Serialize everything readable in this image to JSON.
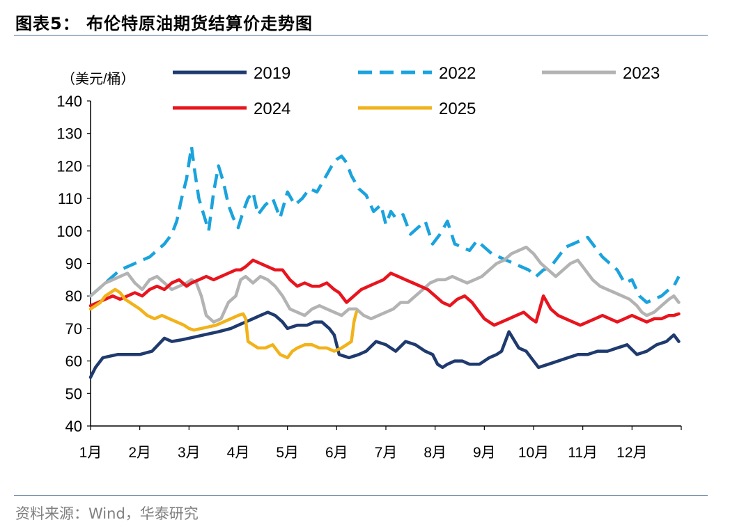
{
  "header": {
    "title": "图表5：  布伦特原油期货结算价走势图"
  },
  "footer": {
    "source": "资料来源：Wind，华泰研究"
  },
  "chart_data": {
    "type": "line",
    "title": "图表5：  布伦特原油期货结算价走势图",
    "ylabel": "（美元/桶）",
    "xlabel": "",
    "ylim": [
      40,
      140
    ],
    "yticks": [
      40,
      50,
      60,
      70,
      80,
      90,
      100,
      110,
      120,
      130,
      140
    ],
    "categories": [
      "1月",
      "2月",
      "3月",
      "4月",
      "5月",
      "6月",
      "7月",
      "8月",
      "9月",
      "10月",
      "11月",
      "12月"
    ],
    "x_unit": "month (1.0 = start of January)",
    "grid": false,
    "legend": "top",
    "series": [
      {
        "name": "2019",
        "color": "#1f3a6e",
        "dash": "solid",
        "x": [
          1.0,
          1.1,
          1.25,
          1.4,
          1.55,
          1.75,
          2.0,
          2.25,
          2.5,
          2.65,
          2.85,
          3.0,
          3.3,
          3.6,
          3.85,
          4.0,
          4.15,
          4.3,
          4.45,
          4.6,
          4.75,
          4.9,
          5.0,
          5.2,
          5.4,
          5.55,
          5.7,
          5.85,
          5.95,
          6.05,
          6.25,
          6.45,
          6.6,
          6.8,
          7.0,
          7.2,
          7.4,
          7.6,
          7.8,
          7.95,
          8.05,
          8.15,
          8.25,
          8.4,
          8.55,
          8.7,
          8.9,
          9.0,
          9.1,
          9.25,
          9.35,
          9.5,
          9.7,
          9.85,
          10.0,
          10.1,
          10.3,
          10.5,
          10.7,
          10.9,
          11.1,
          11.3,
          11.5,
          11.7,
          11.9,
          12.1,
          12.3,
          12.5,
          12.7,
          12.85,
          12.95
        ],
        "y": [
          55,
          58,
          61,
          61.5,
          62,
          62,
          62,
          63,
          67,
          66,
          66.5,
          67,
          68,
          69,
          70,
          71,
          72,
          73,
          74,
          75,
          74,
          72,
          70,
          71,
          71,
          72,
          72,
          70,
          68,
          62,
          61,
          62,
          63,
          66,
          65,
          63,
          66,
          65,
          63,
          62,
          59,
          58,
          59,
          60,
          60,
          59,
          59,
          60,
          61,
          62,
          63,
          69,
          64,
          63,
          60,
          58,
          59,
          60,
          61,
          62,
          62,
          63,
          63,
          64,
          65,
          62,
          63,
          65,
          66,
          68,
          66
        ]
      },
      {
        "name": "2022",
        "color": "#1aa3dd",
        "dash": "dashed",
        "x": [
          1.0,
          1.15,
          1.3,
          1.45,
          1.6,
          1.75,
          1.9,
          2.05,
          2.2,
          2.35,
          2.5,
          2.65,
          2.75,
          2.85,
          2.95,
          3.05,
          3.12,
          3.2,
          3.3,
          3.4,
          3.5,
          3.6,
          3.7,
          3.8,
          3.9,
          4.0,
          4.1,
          4.2,
          4.3,
          4.4,
          4.55,
          4.7,
          4.85,
          5.0,
          5.15,
          5.3,
          5.45,
          5.6,
          5.75,
          5.9,
          6.0,
          6.1,
          6.2,
          6.3,
          6.45,
          6.6,
          6.75,
          6.9,
          7.0,
          7.1,
          7.2,
          7.35,
          7.5,
          7.65,
          7.8,
          7.95,
          8.1,
          8.25,
          8.4,
          8.55,
          8.7,
          8.85,
          9.0,
          9.15,
          9.3,
          9.45,
          9.6,
          9.75,
          9.9,
          10.05,
          10.2,
          10.35,
          10.5,
          10.65,
          10.8,
          10.95,
          11.1,
          11.25,
          11.4,
          11.55,
          11.7,
          11.85,
          12.0,
          12.15,
          12.3,
          12.45,
          12.6,
          12.75,
          12.85,
          12.95
        ],
        "y": [
          80,
          82,
          84,
          86,
          88,
          89,
          90,
          91,
          92,
          94,
          96,
          99,
          103,
          110,
          116,
          126,
          118,
          110,
          105,
          100,
          112,
          120,
          115,
          108,
          104,
          101,
          106,
          110,
          112,
          105,
          108,
          110,
          104,
          112,
          108,
          110,
          113,
          112,
          116,
          120,
          122,
          123,
          121,
          117,
          113,
          111,
          106,
          108,
          102,
          106,
          104,
          105,
          99,
          101,
          103,
          96,
          99,
          103,
          96,
          95,
          94,
          97,
          95,
          93,
          92,
          91,
          90,
          89,
          88,
          86,
          88,
          89,
          92,
          95,
          96,
          97,
          98,
          95,
          92,
          90,
          88,
          84,
          85,
          80,
          78,
          79,
          80,
          82,
          83,
          86
        ]
      },
      {
        "name": "2023",
        "color": "#b3b3b3",
        "dash": "solid",
        "x": [
          1.0,
          1.15,
          1.3,
          1.45,
          1.6,
          1.75,
          1.9,
          2.05,
          2.2,
          2.35,
          2.5,
          2.65,
          2.8,
          2.95,
          3.05,
          3.15,
          3.25,
          3.35,
          3.5,
          3.65,
          3.8,
          3.95,
          4.05,
          4.15,
          4.3,
          4.45,
          4.6,
          4.75,
          4.9,
          5.05,
          5.2,
          5.35,
          5.5,
          5.65,
          5.8,
          5.95,
          6.1,
          6.25,
          6.4,
          6.55,
          6.7,
          6.85,
          7.0,
          7.15,
          7.3,
          7.45,
          7.6,
          7.75,
          7.9,
          8.05,
          8.2,
          8.35,
          8.5,
          8.65,
          8.8,
          8.95,
          9.1,
          9.25,
          9.4,
          9.55,
          9.7,
          9.85,
          10.0,
          10.15,
          10.3,
          10.45,
          10.6,
          10.75,
          10.9,
          11.05,
          11.2,
          11.35,
          11.5,
          11.65,
          11.8,
          11.95,
          12.1,
          12.2,
          12.3,
          12.45,
          12.6,
          12.75,
          12.85,
          12.95
        ],
        "y": [
          80,
          82,
          84,
          85,
          86,
          87,
          84,
          82,
          85,
          86,
          84,
          82,
          83,
          84,
          85,
          84,
          80,
          74,
          72,
          73,
          78,
          80,
          85,
          86,
          84,
          86,
          85,
          83,
          80,
          76,
          75,
          74,
          76,
          77,
          76,
          75,
          74,
          76,
          76,
          74,
          73,
          74,
          75,
          76,
          78,
          78,
          80,
          82,
          84,
          85,
          85,
          86,
          85,
          84,
          85,
          86,
          88,
          90,
          91,
          93,
          94,
          95,
          93,
          90,
          88,
          86,
          88,
          90,
          91,
          88,
          85,
          83,
          82,
          81,
          80,
          79,
          77,
          75,
          74,
          75,
          77,
          79,
          80,
          78
        ]
      },
      {
        "name": "2024",
        "color": "#e8141e",
        "dash": "solid",
        "x": [
          1.0,
          1.15,
          1.3,
          1.45,
          1.6,
          1.75,
          1.9,
          2.05,
          2.2,
          2.35,
          2.5,
          2.65,
          2.8,
          2.95,
          3.05,
          3.2,
          3.35,
          3.5,
          3.65,
          3.8,
          3.95,
          4.05,
          4.15,
          4.3,
          4.45,
          4.6,
          4.75,
          4.9,
          5.05,
          5.2,
          5.35,
          5.5,
          5.65,
          5.8,
          5.95,
          6.05,
          6.2,
          6.35,
          6.5,
          6.65,
          6.8,
          6.95,
          7.1,
          7.25,
          7.4,
          7.55,
          7.7,
          7.85,
          8.0,
          8.15,
          8.3,
          8.45,
          8.6,
          8.75,
          8.9,
          9.0,
          9.1,
          9.2,
          9.35,
          9.5,
          9.65,
          9.8,
          9.95,
          10.05,
          10.2,
          10.35,
          10.5,
          10.65,
          10.8,
          10.95,
          11.1,
          11.25,
          11.4,
          11.55,
          11.7,
          11.85,
          12.0,
          12.15,
          12.3,
          12.45,
          12.6,
          12.75,
          12.85,
          12.95
        ],
        "y": [
          77,
          78,
          79,
          80,
          79,
          80,
          81,
          80,
          82,
          83,
          82,
          84,
          85,
          83,
          84,
          85,
          86,
          85,
          86,
          87,
          88,
          88,
          89,
          91,
          90,
          89,
          88,
          88,
          85,
          83,
          84,
          83,
          83,
          84,
          82,
          81,
          78,
          80,
          82,
          83,
          84,
          85,
          87,
          86,
          85,
          84,
          83,
          82,
          80,
          78,
          77,
          79,
          80,
          78,
          75,
          73,
          72,
          71,
          72,
          73,
          74,
          75,
          73,
          72,
          80,
          76,
          74,
          73,
          72,
          71,
          72,
          73,
          74,
          73,
          72,
          73,
          74,
          73,
          72,
          73,
          73,
          74,
          74,
          74.5
        ]
      },
      {
        "name": "2025",
        "color": "#f2b21a",
        "dash": "solid",
        "x": [
          1.0,
          1.1,
          1.2,
          1.3,
          1.4,
          1.5,
          1.6,
          1.7,
          1.8,
          1.9,
          2.0,
          2.15,
          2.3,
          2.45,
          2.6,
          2.75,
          2.9,
          3.0,
          3.1,
          3.25,
          3.4,
          3.55,
          3.7,
          3.85,
          4.0,
          4.1,
          4.15,
          4.2,
          4.3,
          4.4,
          4.55,
          4.7,
          4.85,
          5.0,
          5.1,
          5.2,
          5.35,
          5.5,
          5.65,
          5.8,
          5.95,
          6.1,
          6.2,
          6.3,
          6.35,
          6.4
        ],
        "y": [
          76,
          77,
          78,
          80,
          81,
          82,
          81,
          79,
          78,
          77,
          76,
          74,
          73,
          74,
          73,
          72,
          71,
          70,
          69.5,
          70,
          70.5,
          71,
          72,
          73,
          74,
          74.5,
          73,
          66,
          65,
          64,
          64,
          65,
          62,
          61,
          63,
          64,
          65,
          65,
          64,
          64,
          63,
          64,
          65,
          66,
          72,
          75
        ]
      }
    ]
  }
}
